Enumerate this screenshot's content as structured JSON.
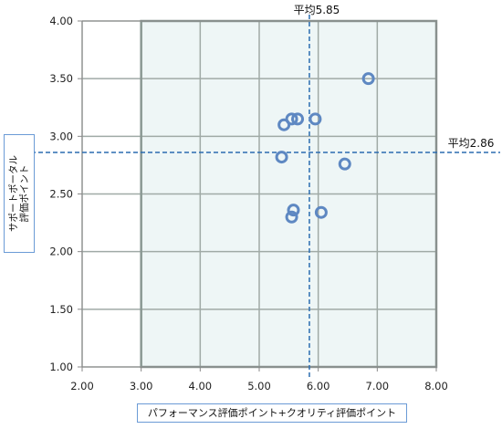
{
  "chart_data": {
    "type": "scatter",
    "xlim": [
      2.0,
      8.0
    ],
    "ylim": [
      1.0,
      4.0
    ],
    "x_ticks": [
      "2.00",
      "3.00",
      "4.00",
      "5.00",
      "6.00",
      "7.00",
      "8.00"
    ],
    "y_ticks": [
      "1.00",
      "1.50",
      "2.00",
      "2.50",
      "3.00",
      "3.50",
      "4.00"
    ],
    "x_tick_values": [
      2,
      3,
      4,
      5,
      6,
      7,
      8
    ],
    "y_tick_values": [
      1.0,
      1.5,
      2.0,
      2.5,
      3.0,
      3.5,
      4.0
    ],
    "xlabel": "パフォーマンス評価ポイント+クオリティ評価ポイント",
    "ylabel_lines": [
      "サポートポータル",
      "評価ポイント"
    ],
    "x_avg": {
      "value": 5.85,
      "label": "平均5.85"
    },
    "y_avg": {
      "value": 2.86,
      "label": "平均2.86"
    },
    "grid": true,
    "shaded_region": {
      "x_from": 3.0,
      "x_to": 8.0
    },
    "points": [
      {
        "x": 6.85,
        "y": 3.5
      },
      {
        "x": 5.42,
        "y": 3.1
      },
      {
        "x": 5.55,
        "y": 3.15
      },
      {
        "x": 5.65,
        "y": 3.15
      },
      {
        "x": 5.95,
        "y": 3.15
      },
      {
        "x": 5.38,
        "y": 2.82
      },
      {
        "x": 6.45,
        "y": 2.76
      },
      {
        "x": 5.58,
        "y": 2.36
      },
      {
        "x": 5.55,
        "y": 2.3
      },
      {
        "x": 6.05,
        "y": 2.34
      }
    ],
    "colors": {
      "point": "#5e88c2",
      "avg_line": "#2b6cb0",
      "grid": "#a0aaa6",
      "shade": "#eef6f6",
      "axis": "#888888"
    }
  }
}
